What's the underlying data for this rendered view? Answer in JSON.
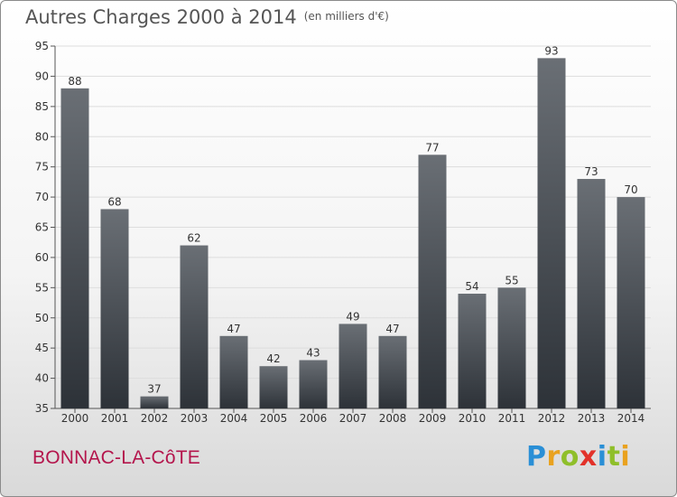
{
  "header": {
    "title": "Autres Charges 2000 à 2014",
    "unit": "(en milliers d'€)"
  },
  "footer": {
    "commune": "BONNAC-LA-CôTE",
    "logo_letters": [
      "P",
      "r",
      "o",
      "x",
      "i",
      "t",
      "i"
    ]
  },
  "colors": {
    "bar_top": "#6a6f75",
    "bar_bottom": "#2d3238",
    "grid": "#dddddd",
    "axis": "#555555",
    "commune": "#b4154c",
    "logo": [
      "#2a8fd6",
      "#e9a21f",
      "#8fbf2a",
      "#e2322a",
      "#2a8fd6",
      "#8fbf2a",
      "#e9a21f"
    ]
  },
  "chart_data": {
    "type": "bar",
    "title": "Autres Charges 2000 à 2014",
    "subtitle": "(en milliers d'€)",
    "categories": [
      "2000",
      "2001",
      "2002",
      "2003",
      "2004",
      "2005",
      "2006",
      "2007",
      "2008",
      "2009",
      "2010",
      "2011",
      "2012",
      "2013",
      "2014"
    ],
    "values": [
      88,
      68,
      37,
      62,
      47,
      42,
      43,
      49,
      47,
      77,
      54,
      55,
      93,
      73,
      70
    ],
    "ylim": [
      35,
      95
    ],
    "yticks": [
      35,
      40,
      45,
      50,
      55,
      60,
      65,
      70,
      75,
      80,
      85,
      90,
      95
    ],
    "grid": true
  }
}
